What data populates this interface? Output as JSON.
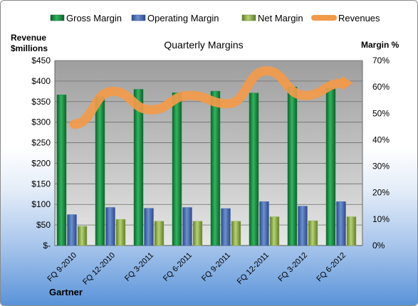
{
  "chart_data": {
    "type": "bar",
    "title": "Quarterly Margins",
    "source": "Gartner",
    "left_axis_label": [
      "Revenue",
      "$millions"
    ],
    "right_axis_label": "Margin %",
    "categories": [
      "FQ 9-2010",
      "FQ 12-2010",
      "FQ 3-2011",
      "FQ 6-2011",
      "FQ 9-2011",
      "FQ 12-2011",
      "FQ 3-2012",
      "FQ 6-2012"
    ],
    "y_left": {
      "min": 0,
      "max": 450,
      "step": 50,
      "tick_labels": [
        "$-",
        "$50",
        "$100",
        "$150",
        "$200",
        "$250",
        "$300",
        "$350",
        "$400",
        "$450"
      ]
    },
    "y_right": {
      "min": 0,
      "max": 70,
      "step": 10,
      "tick_labels": [
        "0%",
        "10%",
        "20%",
        "30%",
        "40%",
        "50%",
        "60%",
        "70%"
      ]
    },
    "series": [
      {
        "name": "Gross Margin",
        "type": "bar",
        "axis": "right",
        "color": "#1a8a44",
        "values": [
          57,
          56.3,
          59.1,
          57.8,
          58.4,
          57.7,
          60,
          59.5
        ]
      },
      {
        "name": "Operating Margin",
        "type": "bar",
        "axis": "right",
        "color": "#4a6fb5",
        "values": [
          11.7,
          14.4,
          14.1,
          14.4,
          14,
          16.6,
          14.9,
          16.6
        ]
      },
      {
        "name": "Net Margin",
        "type": "bar",
        "axis": "right",
        "color": "#9bbb59",
        "values": [
          7.3,
          9.9,
          9.2,
          9.2,
          9.2,
          10.9,
          9.4,
          10.9
        ]
      },
      {
        "name": "Revenues",
        "type": "line",
        "axis": "left",
        "color": "#f29a4a",
        "values": [
          295,
          375,
          330,
          365,
          345,
          425,
          365,
          395
        ]
      }
    ],
    "grid": true,
    "legend": "top"
  }
}
